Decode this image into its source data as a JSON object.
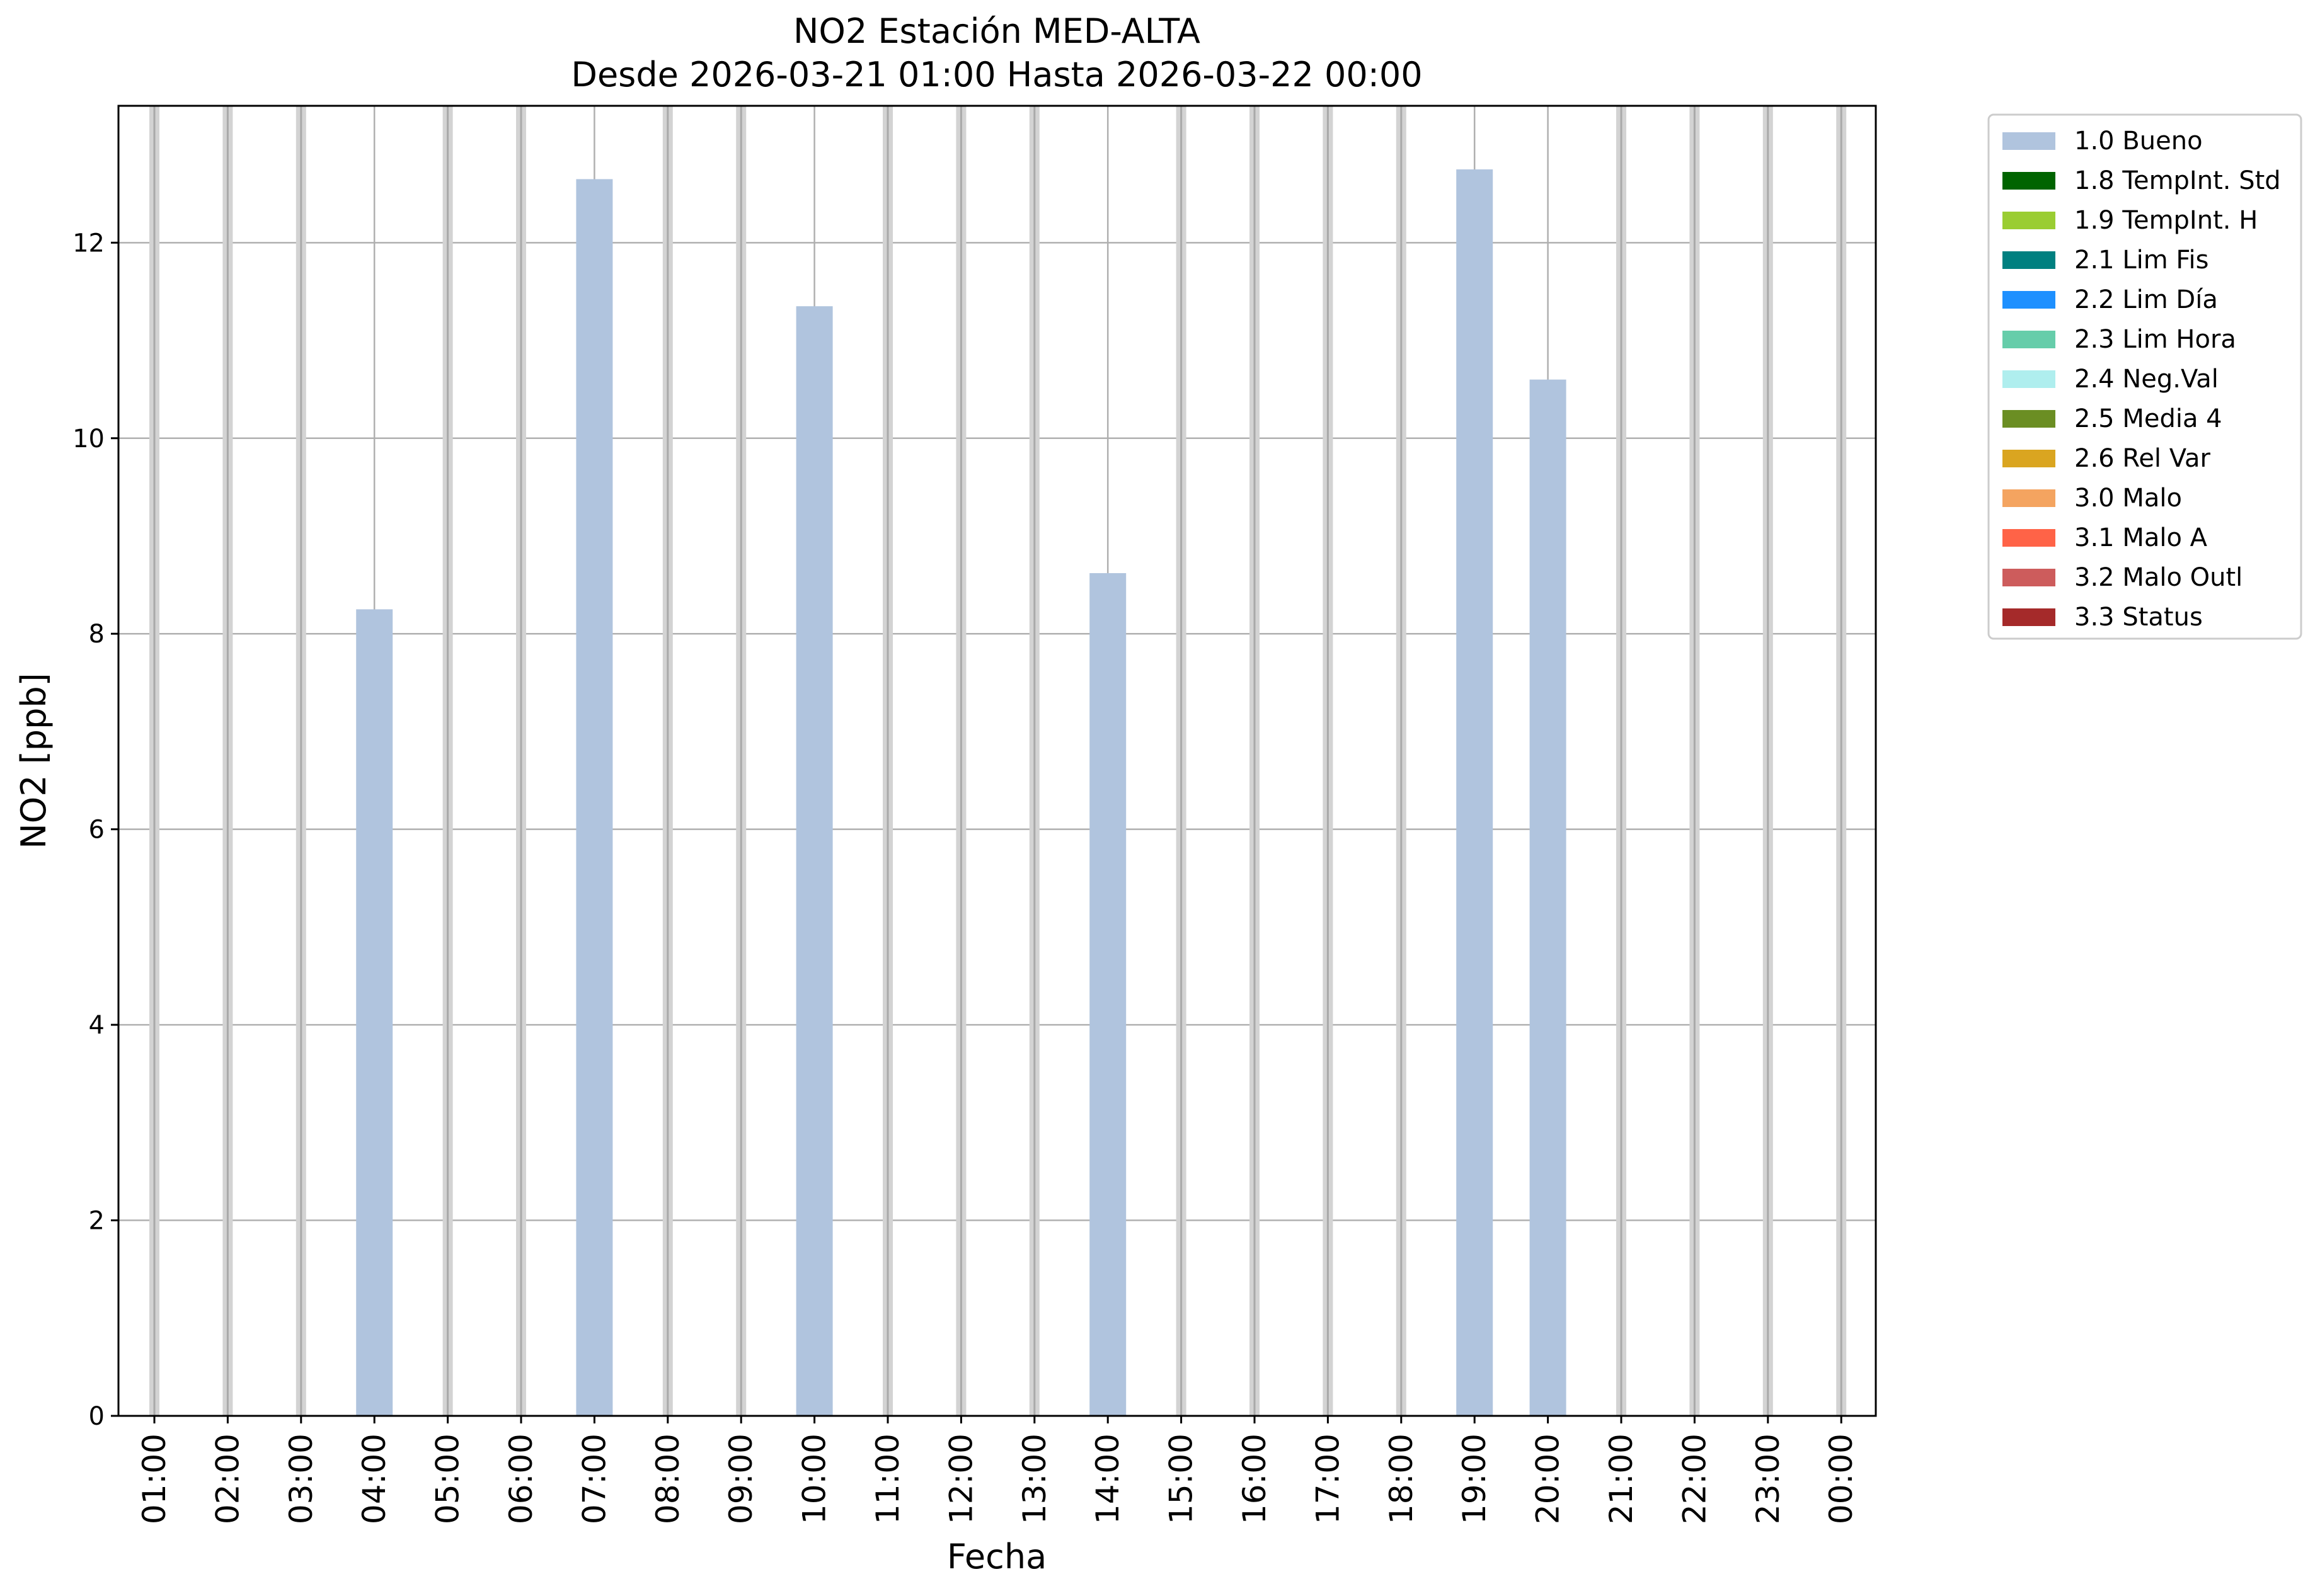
{
  "chart_data": {
    "type": "bar",
    "title": "NO2 Estación MED-ALTA",
    "subtitle": "Desde 2026-03-21 01:00 Hasta 2026-03-22 00:00",
    "xlabel": "Fecha",
    "ylabel": "NO2 [ppb]",
    "ylim": [
      0,
      13.4
    ],
    "yticks": [
      0,
      2,
      4,
      6,
      8,
      10,
      12
    ],
    "grid": true,
    "legend_position": "outside-right",
    "categories": [
      "01:00",
      "02:00",
      "03:00",
      "04:00",
      "05:00",
      "06:00",
      "07:00",
      "08:00",
      "09:00",
      "10:00",
      "11:00",
      "12:00",
      "13:00",
      "14:00",
      "15:00",
      "16:00",
      "17:00",
      "18:00",
      "19:00",
      "20:00",
      "21:00",
      "22:00",
      "23:00",
      "00:00"
    ],
    "series": [
      {
        "name": "1.0 Bueno",
        "color": "#b0c4de",
        "values": [
          0,
          0,
          0,
          8.25,
          0,
          0,
          12.65,
          0,
          0,
          11.35,
          0,
          0,
          0,
          8.62,
          0,
          0,
          0,
          0,
          12.75,
          10.6,
          0,
          0,
          0,
          0
        ]
      }
    ],
    "legend": [
      {
        "label": "1.0 Bueno",
        "color": "#b0c4de"
      },
      {
        "label": "1.8 TempInt. Std",
        "color": "#006400"
      },
      {
        "label": "1.9 TempInt. H",
        "color": "#9acd32"
      },
      {
        "label": "2.1 Lim Fis",
        "color": "#008080"
      },
      {
        "label": "2.2 Lim Día",
        "color": "#1e90ff"
      },
      {
        "label": "2.3 Lim Hora",
        "color": "#66cdaa"
      },
      {
        "label": "2.4 Neg.Val",
        "color": "#afeeee"
      },
      {
        "label": "2.5 Media 4",
        "color": "#6b8e23"
      },
      {
        "label": "2.6 Rel Var",
        "color": "#daa520"
      },
      {
        "label": "3.0 Malo",
        "color": "#f4a460"
      },
      {
        "label": "3.1 Malo A",
        "color": "#ff6347"
      },
      {
        "label": "3.2 Malo Outl",
        "color": "#cd5c5c"
      },
      {
        "label": "3.3 Status",
        "color": "#a52a2a"
      }
    ]
  }
}
